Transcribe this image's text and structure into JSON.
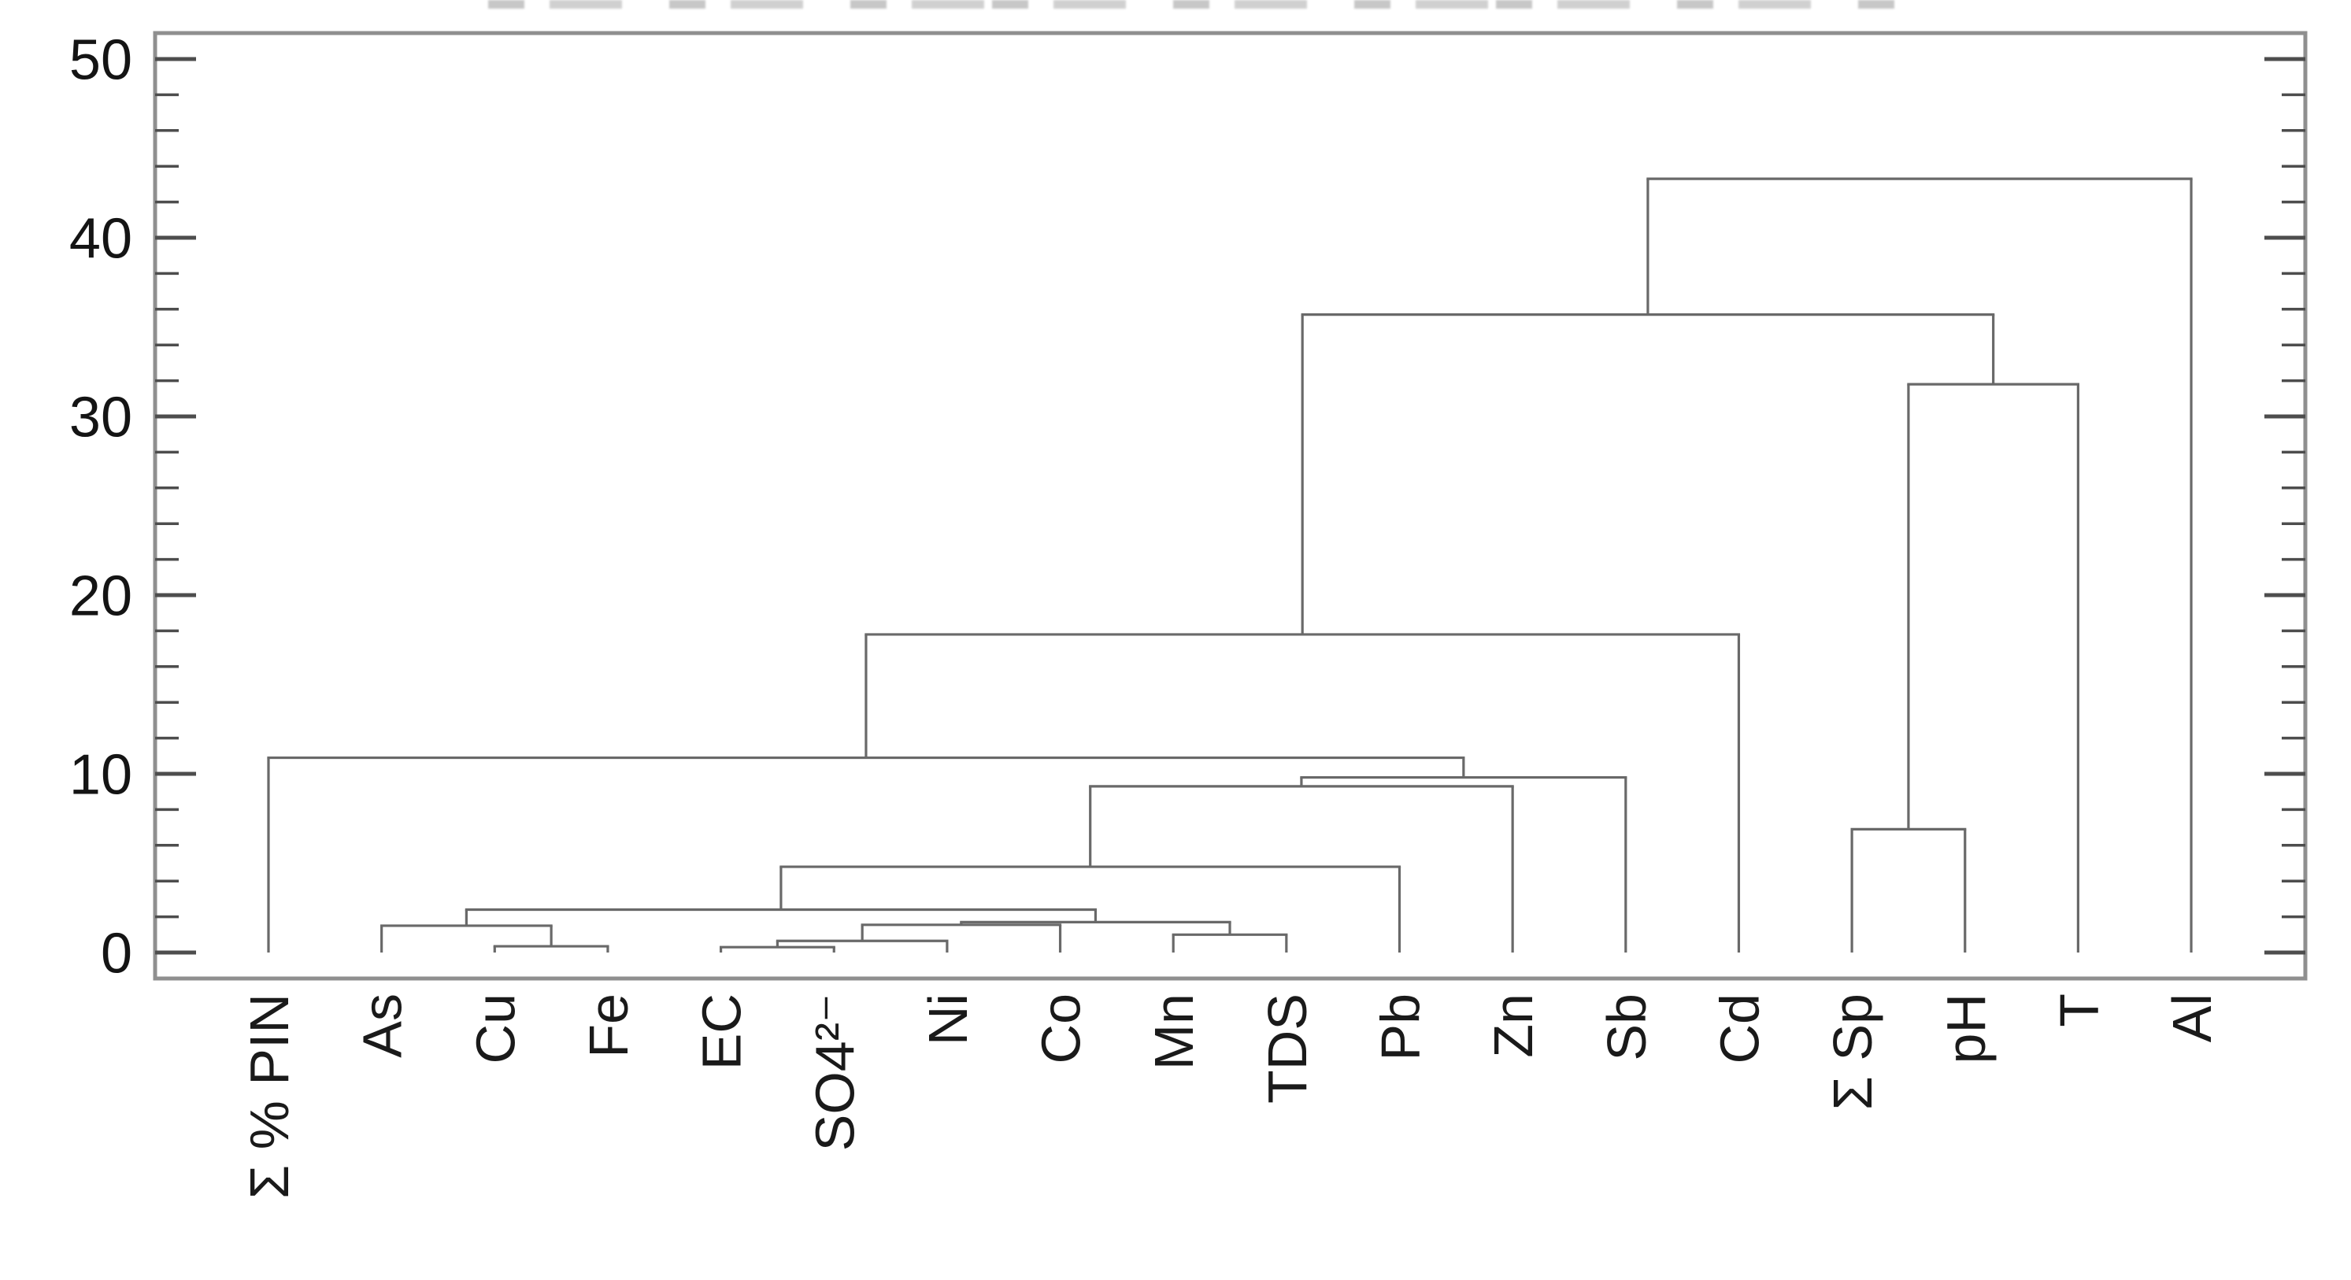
{
  "chart_data": {
    "type": "dendrogram",
    "title": "",
    "top_edge_note": "cropped title text fragments, illegible",
    "orientation": "top",
    "xlabel": "",
    "ylabel": "",
    "ylim": [
      0,
      51.5
    ],
    "yticks": [
      0,
      10,
      20,
      30,
      40,
      50
    ],
    "ytick_labels": [
      "0",
      "10",
      "20",
      "30",
      "40",
      "50"
    ],
    "minor_tick_step": 2,
    "grid": false,
    "frame": true,
    "leaf_label_rotation": -90,
    "leaves": [
      "Σ % PIN",
      "As",
      "Cu",
      "Fe",
      "EC",
      "SO4²⁻",
      "Ni",
      "Co",
      "Mn",
      "TDS",
      "Pb",
      "Zn",
      "Sb",
      "Cd",
      "Σ Sp",
      "pH",
      "T",
      "Al"
    ],
    "merges": [
      {
        "id": "m1",
        "a": "Cu",
        "b": "Fe",
        "height": 0.35
      },
      {
        "id": "m2",
        "a": "As",
        "b": "m1",
        "height": 1.5
      },
      {
        "id": "m3",
        "a": "EC",
        "b": "SO4²⁻",
        "height": 0.3
      },
      {
        "id": "m4",
        "a": "m3",
        "b": "Ni",
        "height": 0.65
      },
      {
        "id": "m5",
        "a": "m4",
        "b": "Co",
        "height": 1.55
      },
      {
        "id": "m6",
        "a": "Mn",
        "b": "TDS",
        "height": 1.0
      },
      {
        "id": "m7",
        "a": "m5",
        "b": "m6",
        "height": 1.7
      },
      {
        "id": "m8",
        "a": "m2",
        "b": "m7",
        "height": 2.4
      },
      {
        "id": "m9",
        "a": "m8",
        "b": "Pb",
        "height": 4.8
      },
      {
        "id": "m10",
        "a": "m9",
        "b": "Zn",
        "height": 9.3
      },
      {
        "id": "m11",
        "a": "m10",
        "b": "Sb",
        "height": 9.8
      },
      {
        "id": "m12",
        "a": "Σ % PIN",
        "b": "m11",
        "height": 10.9
      },
      {
        "id": "m13",
        "a": "m12",
        "b": "Cd",
        "height": 17.8
      },
      {
        "id": "m14",
        "a": "Σ Sp",
        "b": "pH",
        "height": 6.9
      },
      {
        "id": "m15",
        "a": "m14",
        "b": "T",
        "height": 31.8
      },
      {
        "id": "m16",
        "a": "m13",
        "b": "m15",
        "height": 35.7
      },
      {
        "id": "m17",
        "a": "m16",
        "b": "Al",
        "height": 43.3
      }
    ],
    "colors": {
      "tree_line": "#696969",
      "frame": "#8f8f8f",
      "tick": "#4d4d4d",
      "text": "#1a1a1a",
      "background": "#ffffff"
    }
  }
}
